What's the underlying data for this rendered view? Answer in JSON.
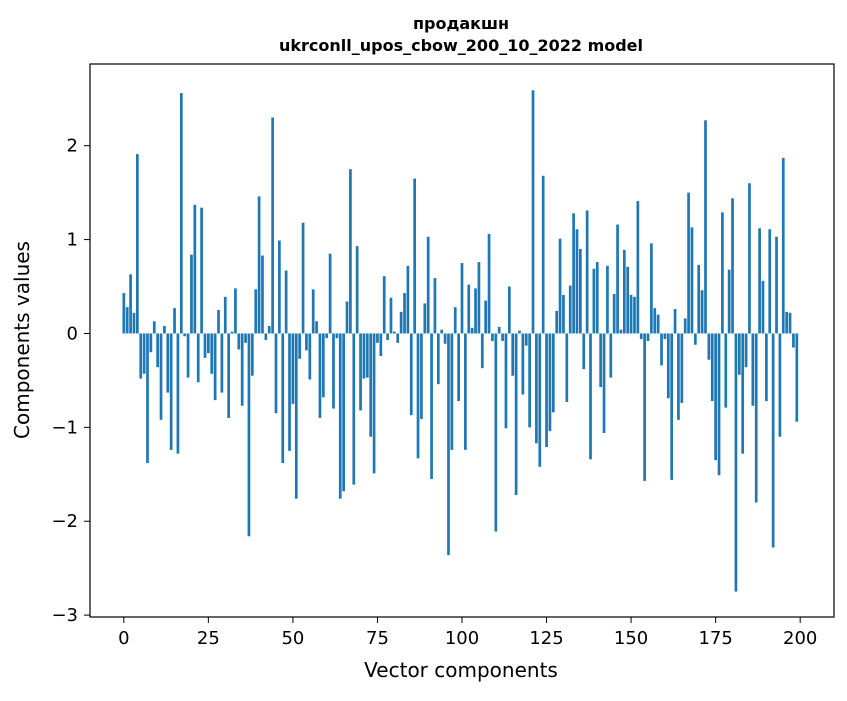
{
  "chart_data": {
    "type": "bar",
    "title_line1": "продакшн",
    "title_line2": "ukrconll_upos_cbow_200_10_2022 model",
    "xlabel": "Vector components",
    "ylabel": "Components values",
    "xlim": [
      -10,
      210
    ],
    "ylim": [
      -3.02,
      2.87
    ],
    "xticks": [
      {
        "value": 0,
        "label": "0"
      },
      {
        "value": 25,
        "label": "25"
      },
      {
        "value": 50,
        "label": "50"
      },
      {
        "value": 75,
        "label": "75"
      },
      {
        "value": 100,
        "label": "100"
      },
      {
        "value": 125,
        "label": "125"
      },
      {
        "value": 150,
        "label": "150"
      },
      {
        "value": 175,
        "label": "175"
      },
      {
        "value": 200,
        "label": "200"
      }
    ],
    "yticks": [
      {
        "value": -3,
        "label": "−3"
      },
      {
        "value": -2,
        "label": "−2"
      },
      {
        "value": -1,
        "label": "−1"
      },
      {
        "value": 0,
        "label": "0"
      },
      {
        "value": 1,
        "label": "1"
      },
      {
        "value": 2,
        "label": "2"
      }
    ],
    "bar_color": "#1f77b4",
    "grid": false,
    "legend": "none",
    "values": [
      0.43,
      0.28,
      0.63,
      0.22,
      1.91,
      -0.48,
      -0.43,
      -1.38,
      -0.2,
      0.13,
      -0.36,
      -0.92,
      0.08,
      -0.63,
      -1.24,
      0.27,
      -1.28,
      2.56,
      -0.03,
      -0.47,
      0.84,
      1.37,
      -0.52,
      1.34,
      -0.26,
      -0.21,
      -0.43,
      -0.71,
      0.25,
      -0.63,
      0.39,
      -0.9,
      0.02,
      0.48,
      -0.17,
      -0.77,
      -0.1,
      -2.16,
      -0.45,
      0.47,
      1.46,
      0.83,
      -0.07,
      0.08,
      2.3,
      -0.85,
      0.99,
      -1.38,
      0.67,
      -1.25,
      -0.75,
      -1.76,
      -0.27,
      1.18,
      -0.18,
      -0.49,
      0.47,
      0.13,
      -0.9,
      -0.68,
      -0.05,
      0.85,
      -0.8,
      -0.05,
      -1.76,
      -1.68,
      0.34,
      1.75,
      -1.61,
      0.93,
      -0.82,
      -0.48,
      -0.47,
      -1.1,
      -1.49,
      -0.1,
      -0.24,
      0.61,
      -0.07,
      0.38,
      0.02,
      -0.1,
      0.23,
      0.43,
      0.72,
      -0.87,
      1.65,
      -1.33,
      -0.91,
      0.32,
      1.03,
      -1.55,
      0.59,
      -0.54,
      0.04,
      -0.11,
      -2.36,
      -1.24,
      0.28,
      -0.72,
      0.75,
      -1.24,
      0.52,
      0.06,
      0.48,
      0.76,
      -0.37,
      0.35,
      1.06,
      -0.08,
      -2.11,
      0.07,
      -0.08,
      -1.01,
      0.5,
      -0.45,
      -1.72,
      0.03,
      -0.65,
      -0.13,
      -1.0,
      2.59,
      -1.17,
      -1.42,
      1.68,
      -1.21,
      -1.04,
      -0.84,
      0.24,
      1.01,
      0.41,
      -0.73,
      0.51,
      1.28,
      1.11,
      0.9,
      -0.38,
      1.31,
      -1.34,
      0.69,
      0.76,
      -0.57,
      -1.06,
      0.72,
      -0.47,
      0.42,
      1.16,
      0.04,
      0.89,
      0.71,
      0.41,
      0.39,
      1.41,
      -0.06,
      -1.57,
      -0.08,
      0.96,
      0.27,
      0.2,
      -0.34,
      -0.06,
      -0.69,
      -1.56,
      0.26,
      -0.92,
      -0.74,
      0.16,
      1.5,
      1.13,
      -0.12,
      0.73,
      0.46,
      2.27,
      -0.28,
      -0.72,
      -1.35,
      -1.51,
      1.29,
      -0.79,
      0.68,
      1.44,
      -2.75,
      -0.44,
      -1.28,
      -0.36,
      1.6,
      -0.77,
      -1.8,
      1.12,
      0.56,
      -0.72,
      1.11,
      -2.28,
      1.03,
      -1.1,
      1.87,
      0.23,
      0.22,
      -0.15,
      -0.94
    ]
  }
}
